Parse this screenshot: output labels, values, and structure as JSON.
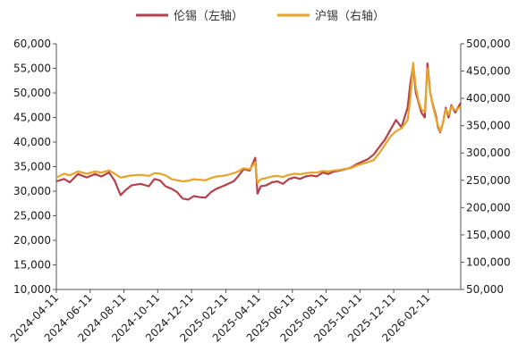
{
  "chart_data": {
    "type": "line",
    "title": "",
    "xlabel": "",
    "ylabel": "",
    "y2label": "",
    "legend_position": "top",
    "grid": false,
    "x_tick_labels": [
      "2024-04-11",
      "2024-06-11",
      "2024-08-11",
      "2024-10-11",
      "2024-12-11",
      "2025-02-11",
      "2025-04-11",
      "2025-06-11",
      "2025-08-11",
      "2025-10-11",
      "2025-12-11",
      "2026-02-11"
    ],
    "x_range": [
      "2024-04-11",
      "2026-04-11"
    ],
    "ylim": [
      10000,
      60000
    ],
    "y2lim": [
      50000,
      500000
    ],
    "y_tick_labels": [
      "10,000",
      "15,000",
      "20,000",
      "25,000",
      "30,000",
      "35,000",
      "40,000",
      "45,000",
      "50,000",
      "55,000",
      "60,000"
    ],
    "y2_tick_labels": [
      "50,000",
      "100,000",
      "150,000",
      "200,000",
      "250,000",
      "300,000",
      "350,000",
      "400,000",
      "450,000",
      "500,000"
    ],
    "series": [
      {
        "name": "伦锡（左轴）",
        "axis": "left",
        "color": "#b5404a",
        "x": [
          "2024-04-11",
          "2024-04-25",
          "2024-05-05",
          "2024-05-20",
          "2024-06-05",
          "2024-06-20",
          "2024-07-01",
          "2024-07-15",
          "2024-07-25",
          "2024-08-05",
          "2024-08-15",
          "2024-08-25",
          "2024-09-10",
          "2024-09-25",
          "2024-10-05",
          "2024-10-15",
          "2024-10-25",
          "2024-11-05",
          "2024-11-15",
          "2024-11-25",
          "2024-12-05",
          "2024-12-15",
          "2024-12-25",
          "2025-01-05",
          "2025-01-15",
          "2025-01-25",
          "2025-02-05",
          "2025-02-15",
          "2025-02-25",
          "2025-03-05",
          "2025-03-15",
          "2025-03-26",
          "2025-04-05",
          "2025-04-09",
          "2025-04-15",
          "2025-04-25",
          "2025-05-05",
          "2025-05-15",
          "2025-05-25",
          "2025-06-05",
          "2025-06-15",
          "2025-06-25",
          "2025-07-05",
          "2025-07-15",
          "2025-07-25",
          "2025-08-05",
          "2025-08-15",
          "2025-08-25",
          "2025-09-05",
          "2025-09-15",
          "2025-09-25",
          "2025-10-05",
          "2025-10-15",
          "2025-10-25",
          "2025-11-05",
          "2025-11-15",
          "2025-11-25",
          "2025-12-05",
          "2025-12-15",
          "2025-12-25",
          "2026-01-05",
          "2026-01-10",
          "2026-01-15",
          "2026-01-20",
          "2026-01-25",
          "2026-01-30",
          "2026-02-05",
          "2026-02-10",
          "2026-02-15",
          "2026-02-20",
          "2026-02-25",
          "2026-03-01",
          "2026-03-05",
          "2026-03-10",
          "2026-03-15",
          "2026-03-20",
          "2026-03-25",
          "2026-04-01",
          "2026-04-11"
        ],
        "y": [
          32000,
          32500,
          31800,
          33500,
          32800,
          33500,
          33000,
          33800,
          32200,
          29200,
          30300,
          31200,
          31500,
          31000,
          32500,
          32200,
          31000,
          30500,
          29800,
          28500,
          28300,
          29000,
          28800,
          28700,
          29800,
          30500,
          31000,
          31500,
          32000,
          33000,
          34500,
          34200,
          36800,
          29500,
          31000,
          31200,
          31800,
          32000,
          31500,
          32500,
          32800,
          32500,
          33000,
          33200,
          33000,
          33800,
          33500,
          34000,
          34200,
          34500,
          34800,
          35500,
          36000,
          36500,
          37500,
          39000,
          40500,
          42500,
          44500,
          43000,
          47000,
          52000,
          55500,
          50000,
          48000,
          46000,
          45000,
          56000,
          50000,
          47500,
          45500,
          43000,
          42000,
          44000,
          47000,
          45000,
          47500,
          46000,
          48000
        ]
      },
      {
        "name": "沪锡（右轴）",
        "axis": "right",
        "color": "#e6a428",
        "x": [
          "2024-04-11",
          "2024-04-25",
          "2024-05-05",
          "2024-05-20",
          "2024-06-05",
          "2024-06-20",
          "2024-07-01",
          "2024-07-15",
          "2024-07-25",
          "2024-08-05",
          "2024-08-15",
          "2024-08-25",
          "2024-09-10",
          "2024-09-25",
          "2024-10-05",
          "2024-10-15",
          "2024-10-25",
          "2024-11-05",
          "2024-11-15",
          "2024-11-25",
          "2024-12-05",
          "2024-12-15",
          "2024-12-25",
          "2025-01-05",
          "2025-01-15",
          "2025-01-25",
          "2025-02-05",
          "2025-02-15",
          "2025-02-25",
          "2025-03-05",
          "2025-03-15",
          "2025-03-26",
          "2025-04-05",
          "2025-04-09",
          "2025-04-15",
          "2025-04-25",
          "2025-05-05",
          "2025-05-15",
          "2025-05-25",
          "2025-06-05",
          "2025-06-15",
          "2025-06-25",
          "2025-07-05",
          "2025-07-15",
          "2025-07-25",
          "2025-08-05",
          "2025-08-15",
          "2025-08-25",
          "2025-09-05",
          "2025-09-15",
          "2025-09-25",
          "2025-10-05",
          "2025-10-15",
          "2025-10-25",
          "2025-11-05",
          "2025-11-15",
          "2025-11-25",
          "2025-12-05",
          "2025-12-15",
          "2025-12-25",
          "2026-01-05",
          "2026-01-10",
          "2026-01-15",
          "2026-01-20",
          "2026-01-25",
          "2026-01-30",
          "2026-02-05",
          "2026-02-10",
          "2026-02-15",
          "2026-02-20",
          "2026-02-25",
          "2026-03-01",
          "2026-03-05",
          "2026-03-10",
          "2026-03-15",
          "2026-03-20",
          "2026-03-25",
          "2026-04-01",
          "2026-04-11"
        ],
        "y": [
          255000,
          262000,
          259000,
          266000,
          262000,
          266000,
          264000,
          268000,
          262000,
          255000,
          257000,
          259000,
          260000,
          258000,
          263000,
          262000,
          259000,
          252000,
          250000,
          248000,
          249000,
          252000,
          251000,
          250000,
          254000,
          257000,
          258000,
          260000,
          263000,
          266000,
          272000,
          270000,
          283000,
          245000,
          252000,
          254000,
          257000,
          258000,
          256000,
          260000,
          262000,
          261000,
          263000,
          264000,
          264000,
          267000,
          266000,
          268000,
          269000,
          271000,
          272000,
          277000,
          280000,
          283000,
          287000,
          300000,
          315000,
          330000,
          340000,
          345000,
          360000,
          400000,
          465000,
          420000,
          395000,
          380000,
          375000,
          455000,
          410000,
          385000,
          365000,
          350000,
          340000,
          355000,
          380000,
          370000,
          385000,
          378000,
          385000
        ]
      }
    ]
  }
}
